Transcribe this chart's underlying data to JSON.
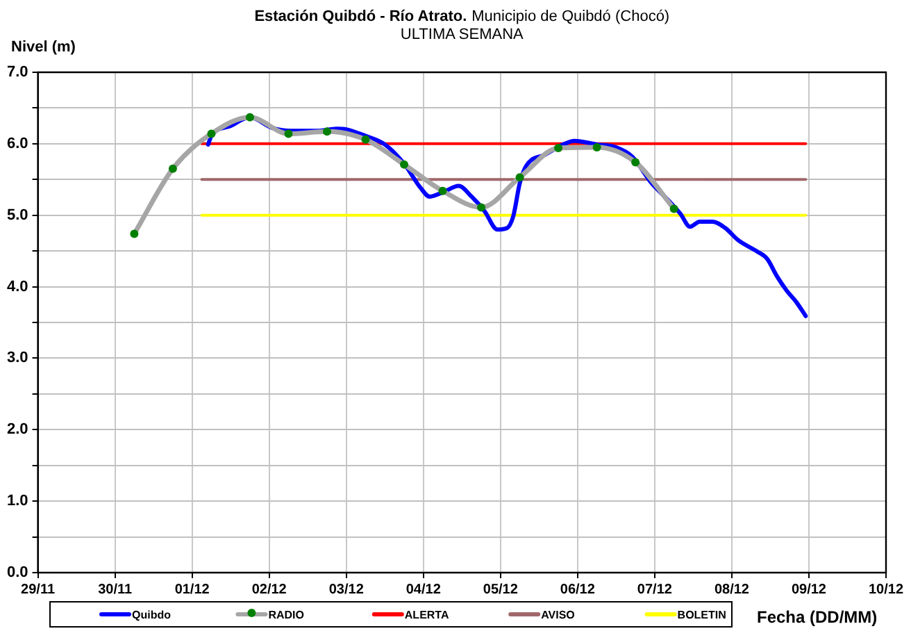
{
  "chart_data": {
    "type": "line",
    "title": "Estación Quibdó - Río Atrato.",
    "subtitle": "Municipio de Quibdó (Chocó)",
    "annotations": [
      "ULTIMA SEMANA"
    ],
    "ylabel": "Nivel (m)",
    "xlabel": "Fecha (DD/MM)",
    "xlim": [
      "--11-29",
      "--12-10"
    ],
    "xticks": [
      {
        "value": "--11-29",
        "label": "29/11"
      },
      {
        "value": "--11-30",
        "label": "30/11"
      },
      {
        "value": "--12-01",
        "label": "01/12"
      },
      {
        "value": "--12-02",
        "label": "02/12"
      },
      {
        "value": "--12-03",
        "label": "03/12"
      },
      {
        "value": "--12-04",
        "label": "04/12"
      },
      {
        "value": "--12-05",
        "label": "05/12"
      },
      {
        "value": "--12-06",
        "label": "06/12"
      },
      {
        "value": "--12-07",
        "label": "07/12"
      },
      {
        "value": "--12-08",
        "label": "08/12"
      },
      {
        "value": "--12-09",
        "label": "09/12"
      },
      {
        "value": "--12-10",
        "label": "10/12"
      }
    ],
    "ylim": [
      0,
      7
    ],
    "yticks": [
      {
        "value": 0,
        "label": "0.0"
      },
      {
        "value": 0.5,
        "label": null
      },
      {
        "value": 1,
        "label": "1.0"
      },
      {
        "value": 1.5,
        "label": null
      },
      {
        "value": 2,
        "label": "2.0"
      },
      {
        "value": 2.5,
        "label": null
      },
      {
        "value": 3,
        "label": "3.0"
      },
      {
        "value": 3.5,
        "label": null
      },
      {
        "value": 4,
        "label": "4.0"
      },
      {
        "value": 4.5,
        "label": null
      },
      {
        "value": 5,
        "label": "5.0"
      },
      {
        "value": 5.5,
        "label": null
      },
      {
        "value": 6,
        "label": "6.0"
      },
      {
        "value": 6.5,
        "label": null
      },
      {
        "value": 7,
        "label": "7.0"
      }
    ],
    "grid": true,
    "legend": "bottom",
    "line_style": "solid",
    "series": [
      {
        "name": "Quibdo",
        "color": "#0000ff",
        "marker": "none",
        "x": [
          "--12-01T05:00",
          "--12-01T06:00",
          "--12-01T12:00",
          "--12-01T18:00",
          "--12-02T01:00",
          "--12-02T07:00",
          "--12-02T15:00",
          "--12-02T21:00",
          "--12-03T00:00",
          "--12-03T06:00",
          "--12-03T12:00",
          "--12-03T18:00",
          "--12-03T23:00",
          "--12-04T02:00",
          "--12-04T06:00",
          "--12-04T11:00",
          "--12-04T15:00",
          "--12-04T19:00",
          "--12-04T23:00",
          "--12-05T02:00",
          "--12-05T04:00",
          "--12-05T06:00",
          "--12-05T08:00",
          "--12-05T14:00",
          "--12-05T20:00",
          "--12-05T23:00",
          "--12-06T06:00",
          "--12-06T12:00",
          "--12-06T17:00",
          "--12-06T23:00",
          "--12-07T04:00",
          "--12-07T08:00",
          "--12-07T11:00",
          "--12-07T14:00",
          "--12-07T18:00",
          "--12-07T22:00",
          "--12-08T02:00",
          "--12-08T08:00",
          "--12-08T11:00",
          "--12-08T14:00",
          "--12-08T17:00",
          "--12-08T20:00",
          "--12-08T23:00"
        ],
        "values": [
          5.99,
          6.11,
          6.25,
          6.37,
          6.22,
          6.18,
          6.18,
          6.21,
          6.2,
          6.11,
          5.99,
          5.72,
          5.39,
          5.26,
          5.32,
          5.41,
          5.26,
          5.06,
          4.8,
          4.82,
          4.99,
          5.45,
          5.69,
          5.85,
          6.0,
          6.04,
          5.99,
          5.95,
          5.82,
          5.45,
          5.22,
          5.02,
          4.84,
          4.91,
          4.91,
          4.82,
          4.65,
          4.49,
          4.39,
          4.15,
          3.95,
          3.79,
          3.59
        ]
      },
      {
        "name": "RADIO",
        "color": "#a6a6a6",
        "marker": "circle",
        "colors": [
          "#008000",
          "#008000",
          "#008000",
          "#008000",
          "#008000",
          "#008000",
          "#008000",
          "#008000",
          "#008000",
          "#008000",
          "#008000",
          "#008000",
          "#008000",
          "#008000",
          "#008000"
        ],
        "x": [
          "--11-30T06:00",
          "--11-30T18:00",
          "--12-01T06:00",
          "--12-01T18:00",
          "--12-02T06:00",
          "--12-02T18:00",
          "--12-03T06:00",
          "--12-03T18:00",
          "--12-04T06:00",
          "--12-04T18:00",
          "--12-05T06:00",
          "--12-05T18:00",
          "--12-06T06:00",
          "--12-06T18:00",
          "--12-07T06:00"
        ],
        "values": [
          4.74,
          5.65,
          6.14,
          6.37,
          6.14,
          6.17,
          6.06,
          5.71,
          5.34,
          5.11,
          5.53,
          5.94,
          5.95,
          5.74,
          5.09
        ]
      },
      {
        "name": "ALERTA",
        "color": "#ff0000",
        "marker": "none",
        "x": [
          "--12-01T03:00",
          "--12-08T23:00"
        ],
        "values": [
          6.0,
          6.0
        ]
      },
      {
        "name": "AVISO",
        "color": "#a0686a",
        "marker": "none",
        "x": [
          "--12-01T03:00",
          "--12-08T23:00"
        ],
        "values": [
          5.5,
          5.5
        ]
      },
      {
        "name": "BOLETIN",
        "color": "#ffff00",
        "marker": "none",
        "x": [
          "--12-01T03:00",
          "--12-08T23:00"
        ],
        "values": [
          5.0,
          5.0
        ]
      }
    ]
  }
}
